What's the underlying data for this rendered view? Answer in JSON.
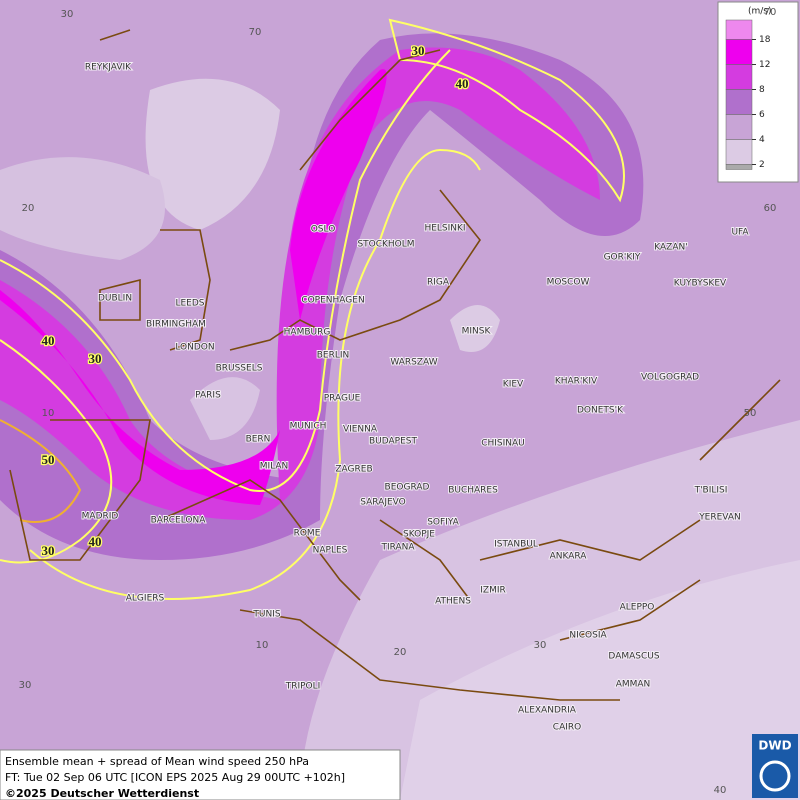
{
  "map": {
    "cities": [
      "REYKJAVIK",
      "OSLO",
      "STOCKHOLM",
      "HELSINKI",
      "DUBLIN",
      "LEEDS",
      "BIRMINGHAM",
      "LONDON",
      "COPENHAGEN",
      "HAMBURG",
      "RIGA",
      "MOSCOW",
      "GOR'KIY",
      "KAZAN'",
      "UFA",
      "KUYBYSKEV",
      "MINSK",
      "BERLIN",
      "WARSZAW",
      "BRUSSELS",
      "PARIS",
      "PRAGUE",
      "KIEV",
      "KHAR'KIV",
      "VOLGOGRAD",
      "MUNICH",
      "VIENNA",
      "DONETS'K",
      "BERN",
      "BUDAPEST",
      "CHISINAU",
      "MILAN",
      "ZAGREB",
      "BEOGRAD",
      "BUCHARES",
      "T'BILISI",
      "SARAJEVO",
      "MADRID",
      "BARCELONA",
      "SOFIYA",
      "YEREVAN",
      "ROME",
      "SKOPJE",
      "ISTANBUL",
      "NAPLES",
      "TIRANA",
      "ANKARA",
      "ALGIERS",
      "ATHENS",
      "IZMIR",
      "ALEPPO",
      "TUNIS",
      "NICOSIA",
      "DAMASCUS",
      "AMMAN",
      "TRIPOLI",
      "ALEXANDRIA",
      "CAIRO"
    ],
    "graticule_labels": [
      "30",
      "70",
      "70",
      "20",
      "60",
      "10",
      "50",
      "30",
      "10",
      "20",
      "30",
      "40"
    ],
    "contour_labels": [
      "30",
      "40",
      "40",
      "30",
      "50",
      "40",
      "30"
    ],
    "legend": {
      "title": "(m/s)",
      "ticks": [
        18,
        12,
        8,
        6,
        4,
        2
      ]
    },
    "footer": [
      "Ensemble mean + spread of Mean wind speed 250 hPa",
      "FT: Tue 02 Sep 06 UTC [ICON EPS 2025 Aug 29 00UTC +102h]",
      "©2025 Deutscher Wetterdienst"
    ],
    "logo": "DWD"
  }
}
